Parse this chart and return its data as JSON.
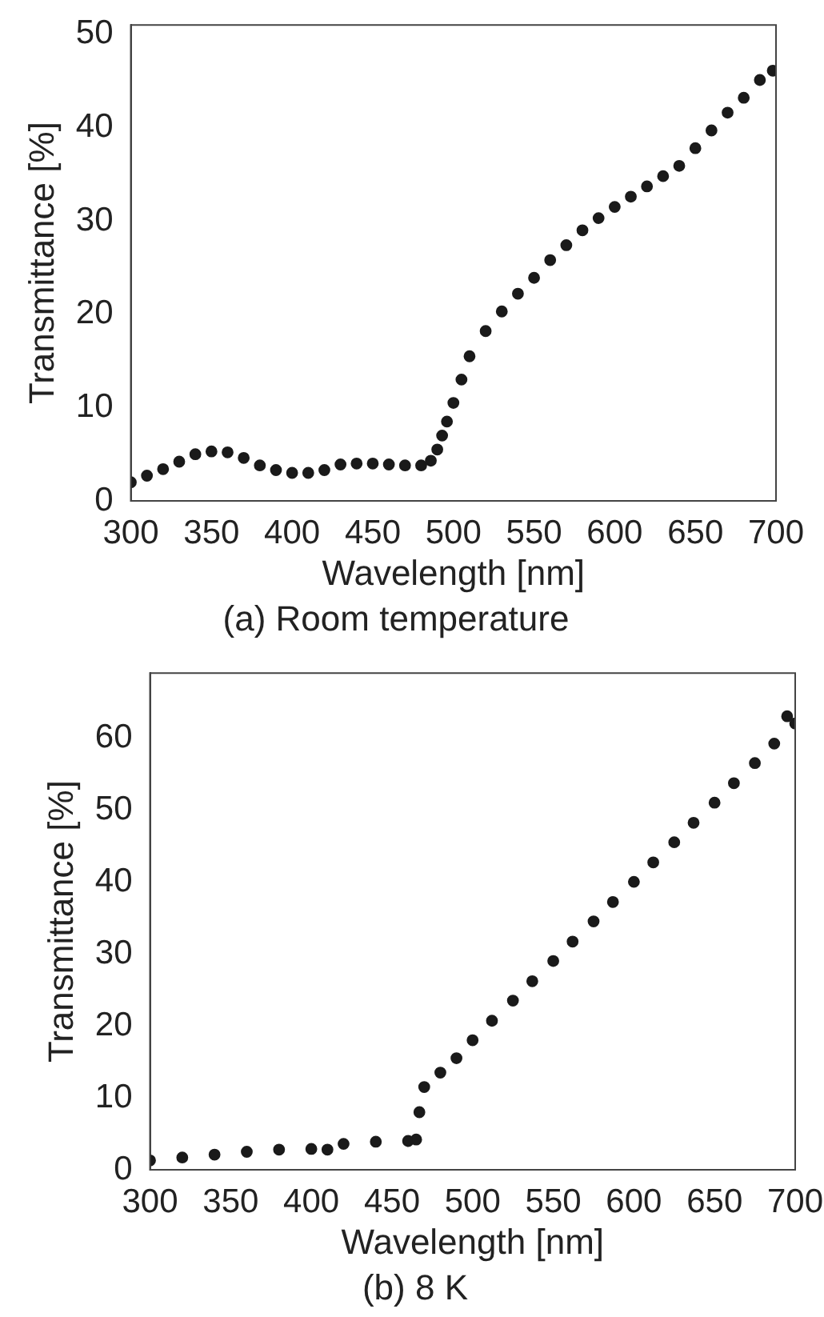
{
  "chart_data": [
    {
      "type": "scatter",
      "title": "(a) Room temperature",
      "xlabel": "Wavelength [nm]",
      "ylabel": "Transmittance [%]",
      "marker": "circle",
      "grid": false,
      "legend": false,
      "xlim": [
        300,
        700
      ],
      "xticks": [
        300,
        350,
        400,
        450,
        500,
        550,
        600,
        650,
        700
      ],
      "ylim": [
        0,
        51
      ],
      "yticks": [
        0,
        10,
        20,
        30,
        40,
        50
      ],
      "series": [
        {
          "color": "#1a1a1a",
          "x": [
            300,
            310,
            320,
            330,
            340,
            350,
            360,
            370,
            380,
            390,
            400,
            410,
            420,
            430,
            440,
            450,
            460,
            470,
            480,
            486,
            490,
            493,
            496,
            500,
            505,
            510,
            520,
            530,
            540,
            550,
            560,
            570,
            580,
            590,
            600,
            610,
            620,
            630,
            640,
            650,
            660,
            670,
            680,
            690,
            698
          ],
          "values": [
            2,
            2.7,
            3.4,
            4.2,
            5,
            5.3,
            5.2,
            4.6,
            3.8,
            3.3,
            3,
            3,
            3.3,
            3.9,
            4,
            4,
            3.9,
            3.8,
            3.8,
            4.3,
            5.5,
            7,
            8.5,
            10.5,
            13,
            15.5,
            18.2,
            20.3,
            22.2,
            23.9,
            25.8,
            27.4,
            29,
            30.3,
            31.5,
            32.6,
            33.7,
            34.8,
            35.9,
            37.8,
            39.7,
            41.6,
            43.2,
            45.1,
            46.1
          ]
        }
      ]
    },
    {
      "type": "scatter",
      "title": "(b) 8 K",
      "xlabel": "Wavelength [nm]",
      "ylabel": "Transmittance [%]",
      "marker": "circle",
      "grid": false,
      "legend": false,
      "xlim": [
        300,
        700
      ],
      "xticks": [
        300,
        350,
        400,
        450,
        500,
        550,
        600,
        650,
        700
      ],
      "ylim": [
        0,
        69
      ],
      "yticks": [
        0,
        10,
        20,
        30,
        40,
        50,
        60
      ],
      "series": [
        {
          "color": "#1a1a1a",
          "x": [
            300,
            320,
            340,
            360,
            380,
            400,
            410,
            420,
            440,
            460,
            465,
            467,
            470,
            480,
            490,
            500,
            512,
            525,
            537,
            550,
            562,
            575,
            587,
            600,
            612,
            625,
            637,
            650,
            662,
            675,
            687,
            695,
            700
          ],
          "values": [
            1.3,
            1.7,
            2.1,
            2.5,
            2.8,
            2.9,
            2.8,
            3.6,
            3.9,
            4,
            4.2,
            8,
            11.5,
            13.5,
            15.5,
            18,
            20.7,
            23.5,
            26.2,
            29,
            31.7,
            34.5,
            37.2,
            40,
            42.7,
            45.5,
            48.2,
            51,
            53.7,
            56.5,
            59.2,
            63,
            62
          ]
        }
      ]
    }
  ]
}
